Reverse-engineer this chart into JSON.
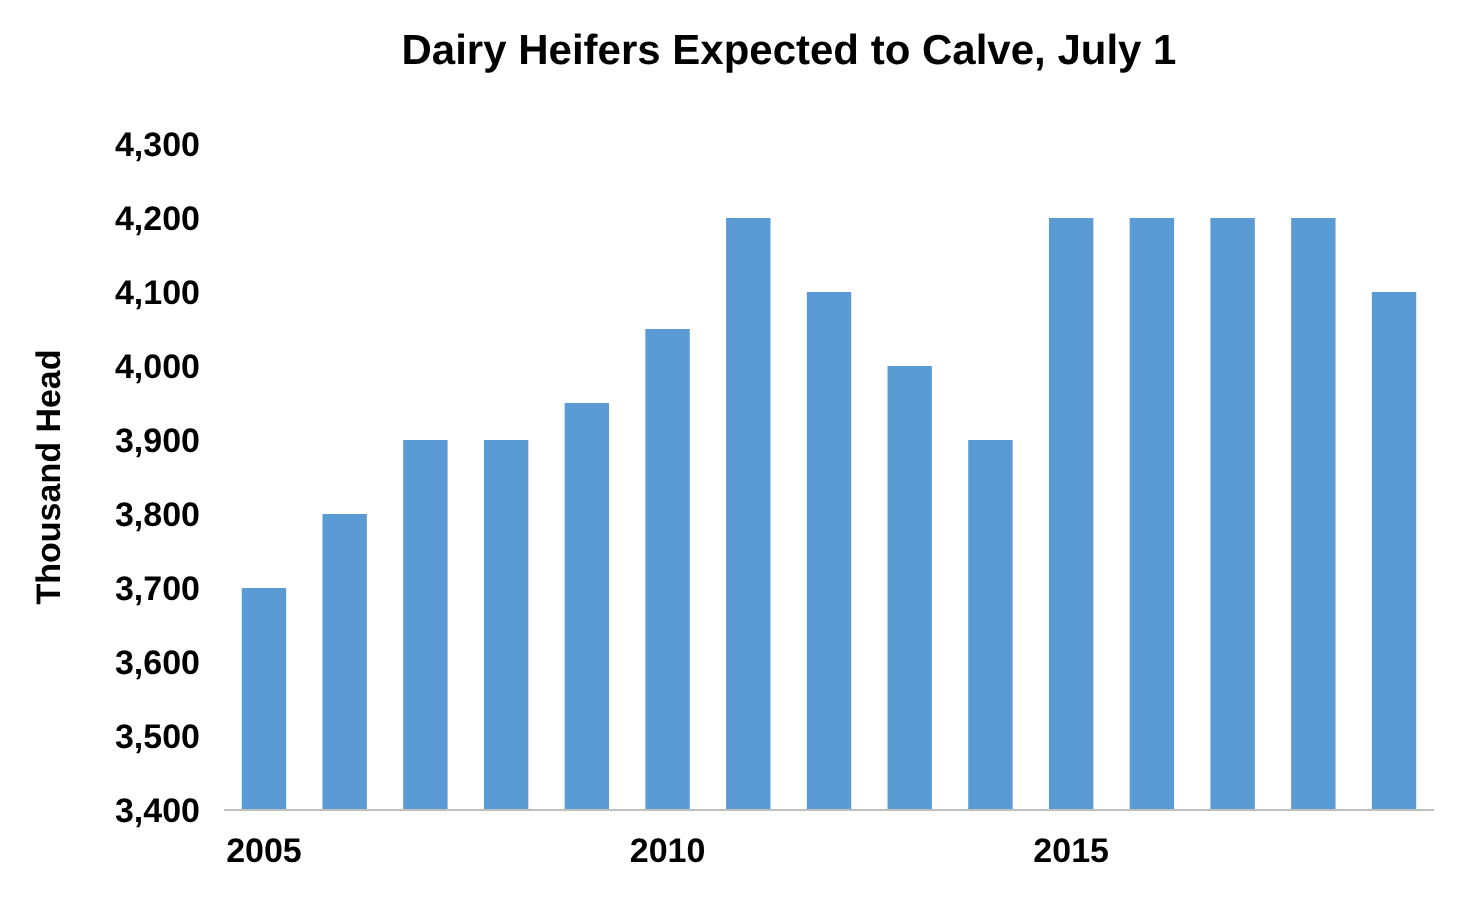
{
  "chart_data": {
    "type": "bar",
    "title": "Dairy Heifers Expected to Calve, July 1",
    "ylabel": "Thousand Head",
    "categories": [
      "2005",
      null,
      null,
      null,
      null,
      "2010",
      null,
      null,
      null,
      null,
      "2015",
      null,
      null,
      null,
      null
    ],
    "values": [
      3700,
      3800,
      3900,
      3900,
      3950,
      4050,
      4200,
      4100,
      4000,
      3900,
      4200,
      4200,
      4200,
      4200,
      4100
    ],
    "color": "#5b9bd5",
    "ylim": [
      3400,
      4300
    ],
    "yticks": [
      {
        "value": 3400,
        "label": "3,400"
      },
      {
        "value": 3500,
        "label": "3,500"
      },
      {
        "value": 3600,
        "label": "3,600"
      },
      {
        "value": 3700,
        "label": "3,700"
      },
      {
        "value": 3800,
        "label": "3,800"
      },
      {
        "value": 3900,
        "label": "3,900"
      },
      {
        "value": 4000,
        "label": "4,000"
      },
      {
        "value": 4100,
        "label": "4,100"
      },
      {
        "value": 4200,
        "label": "4,200"
      },
      {
        "value": 4300,
        "label": "4,300"
      }
    ],
    "grid": false
  }
}
